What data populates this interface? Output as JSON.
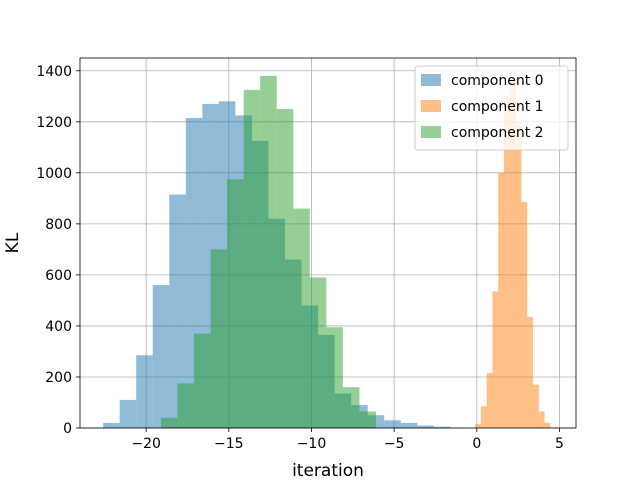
{
  "chart_data": {
    "type": "bar",
    "subtype": "overlaid histogram",
    "title": "",
    "xlabel": "iteration",
    "ylabel": "KL",
    "xlim": [
      -24,
      6
    ],
    "ylim": [
      0,
      1450
    ],
    "xticks": [
      -20,
      -15,
      -10,
      -5,
      0,
      5
    ],
    "xtick_labels": [
      "−20",
      "−15",
      "−10",
      "−5",
      "0",
      "5"
    ],
    "yticks": [
      0,
      200,
      400,
      600,
      800,
      1000,
      1200,
      1400
    ],
    "ytick_labels": [
      "0",
      "200",
      "400",
      "600",
      "800",
      "1000",
      "1200",
      "1400"
    ],
    "grid": true,
    "legend_position": "upper right",
    "bar_opacity": 0.5,
    "series": [
      {
        "name": "component 0",
        "color": "#1f77b4",
        "bin_edges": [
          -22.6,
          -21.6,
          -20.6,
          -19.6,
          -18.6,
          -17.6,
          -16.6,
          -15.6,
          -14.6,
          -13.6,
          -12.6,
          -11.6,
          -10.6,
          -9.6,
          -8.6,
          -7.6,
          -6.6,
          -5.6,
          -4.6,
          -3.6,
          -2.6,
          -1.6
        ],
        "counts": [
          20,
          110,
          285,
          560,
          915,
          1215,
          1270,
          1280,
          1225,
          1125,
          820,
          660,
          480,
          365,
          135,
          90,
          50,
          30,
          20,
          10,
          5
        ]
      },
      {
        "name": "component 1",
        "color": "#ff7f0e",
        "bin_edges": [
          -0.1,
          0.25,
          0.6,
          0.95,
          1.3,
          1.65,
          2.0,
          2.35,
          2.7,
          3.05,
          3.4,
          3.75,
          4.1,
          4.45
        ],
        "counts": [
          15,
          85,
          215,
          535,
          1000,
          1300,
          1360,
          1200,
          885,
          435,
          170,
          65,
          20
        ]
      },
      {
        "name": "component 2",
        "color": "#2ca02c",
        "bin_edges": [
          -19.1,
          -18.1,
          -17.1,
          -16.1,
          -15.1,
          -14.1,
          -13.1,
          -12.1,
          -11.1,
          -10.1,
          -9.1,
          -8.1,
          -7.1,
          -6.1
        ],
        "counts": [
          40,
          175,
          370,
          700,
          975,
          1325,
          1380,
          1250,
          860,
          590,
          395,
          160,
          65
        ]
      }
    ]
  }
}
